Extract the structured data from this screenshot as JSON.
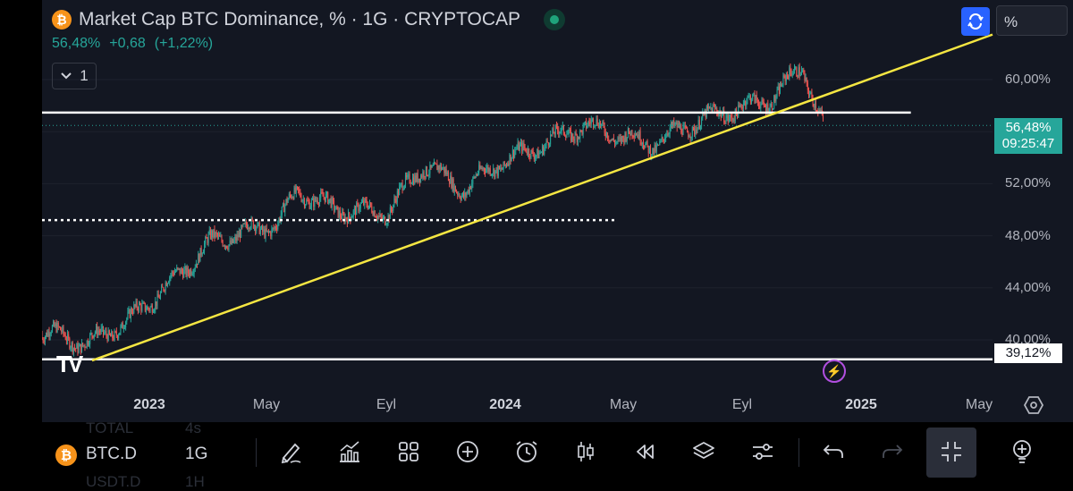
{
  "header": {
    "symbol_icon": "bitcoin-icon",
    "title": "Market Cap BTC Dominance, % · 1G · CRYPTOCAP",
    "last": "56,48%",
    "change": "+0,68",
    "change_pct": "(+1,22%)",
    "indicators_count": "1"
  },
  "scale_button": "%",
  "price_label": {
    "value": "56,48%",
    "countdown": "09:25:47"
  },
  "support_label": "39,12%",
  "y_ticks": [
    "60,00%",
    "52,00%",
    "48,00%",
    "44,00%",
    "40,00%"
  ],
  "x_ticks": [
    {
      "label": "2023",
      "bold": true
    },
    {
      "label": "May",
      "bold": false
    },
    {
      "label": "Eyl",
      "bold": false
    },
    {
      "label": "2024",
      "bold": true
    },
    {
      "label": "May",
      "bold": false
    },
    {
      "label": "Eyl",
      "bold": false
    },
    {
      "label": "2025",
      "bold": true
    },
    {
      "label": "May",
      "bold": false
    }
  ],
  "logo": "TV",
  "bottom_toolbar": {
    "symbol": "BTC.D",
    "interval": "1G",
    "ghost_row_top": [
      "TOTAL",
      "4s"
    ],
    "ghost_row_bottom": [
      "USDT.D",
      "1H"
    ]
  },
  "colors": {
    "up": "#26a69a",
    "down": "#ef5350",
    "trendline": "#f5e642",
    "level": "#ffffff",
    "accent": "#2962ff",
    "bitcoin": "#f7931a"
  },
  "chart_data": {
    "type": "candlestick",
    "y_unit": "%",
    "ylim": [
      37.0,
      62.5
    ],
    "x_range": [
      "2022-11-01",
      "2025-05-20"
    ],
    "key_points": [
      {
        "date": "2022-11-10",
        "value": 40.5
      },
      {
        "date": "2022-12-15",
        "value": 39.7
      },
      {
        "date": "2023-01-25",
        "value": 41.5
      },
      {
        "date": "2023-03-15",
        "value": 45.0
      },
      {
        "date": "2023-04-15",
        "value": 47.5
      },
      {
        "date": "2023-06-20",
        "value": 49.0
      },
      {
        "date": "2023-07-10",
        "value": 51.5
      },
      {
        "date": "2023-08-15",
        "value": 50.0
      },
      {
        "date": "2023-10-05",
        "value": 49.8
      },
      {
        "date": "2023-11-10",
        "value": 53.5
      },
      {
        "date": "2023-12-20",
        "value": 51.5
      },
      {
        "date": "2024-01-20",
        "value": 53.5
      },
      {
        "date": "2024-02-20",
        "value": 54.5
      },
      {
        "date": "2024-04-15",
        "value": 56.5
      },
      {
        "date": "2024-06-20",
        "value": 55.0
      },
      {
        "date": "2024-08-10",
        "value": 57.0
      },
      {
        "date": "2024-10-15",
        "value": 58.5
      },
      {
        "date": "2024-11-15",
        "value": 61.0
      },
      {
        "date": "2024-12-05",
        "value": 56.5
      }
    ],
    "last_value": 56.48,
    "resistance_level": 56.5,
    "support_level": 39.12,
    "dotted_level": 49.2,
    "trendline": [
      {
        "date": "2022-12-20",
        "value": 39.1
      },
      {
        "date": "2025-05-20",
        "value": 62.5
      }
    ]
  }
}
